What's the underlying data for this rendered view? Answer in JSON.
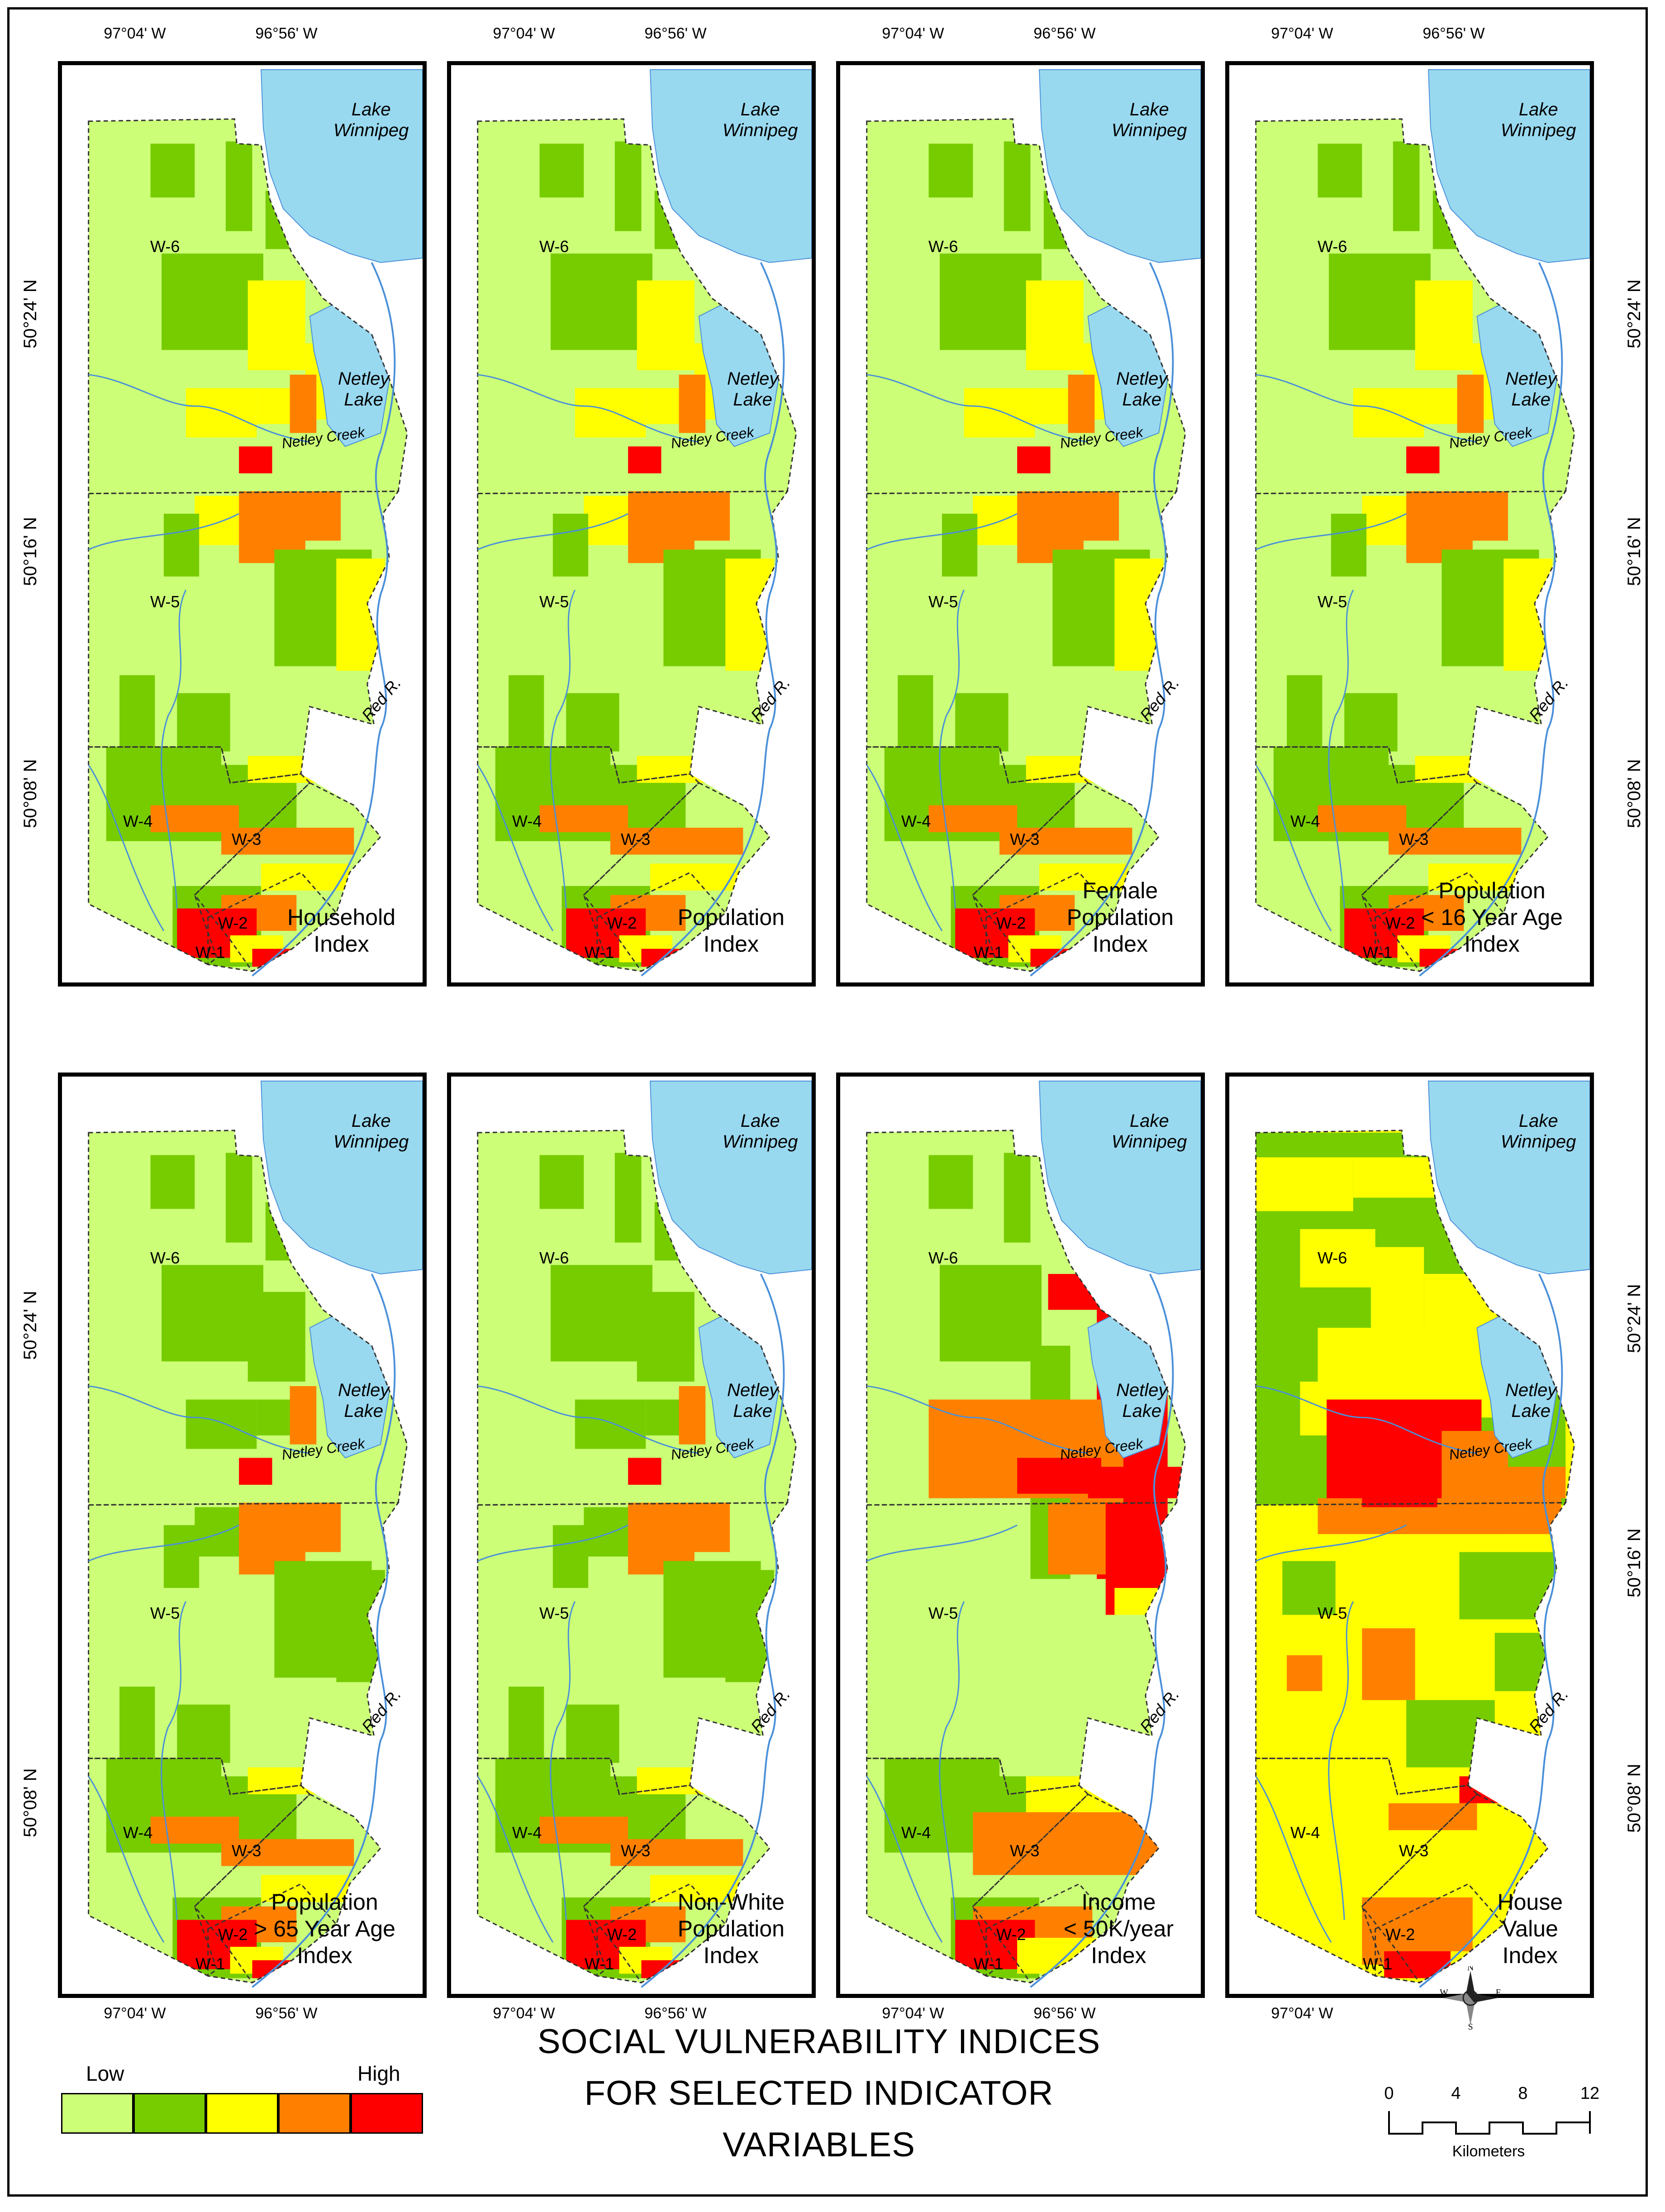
{
  "figure": {
    "title_line1": "SOCIAL VULNERABILITY INDICES",
    "title_line2": "FOR SELECTED INDICATOR VARIABLES"
  },
  "axes": {
    "lon_left": "97°04' W",
    "lon_right": "96°56' W",
    "lat_top": "50°24' N",
    "lat_mid": "50°16' N",
    "lat_bottom": "50°08' N"
  },
  "map_labels": {
    "lake_winnipeg": "Lake\nWinnipeg",
    "netley_lake": "Netley\nLake",
    "netley_creek": "Netley Creek",
    "red_river": "Red R.",
    "wards": [
      "W-6",
      "W-5",
      "W-4",
      "W-3",
      "W-2",
      "W-1"
    ]
  },
  "panels": [
    {
      "label": "Household\nIndex",
      "scheme": "a"
    },
    {
      "label": "Population\nIndex",
      "scheme": "a"
    },
    {
      "label": "Female\nPopulation\nIndex",
      "scheme": "a"
    },
    {
      "label": "Population\n< 16 Year Age\nIndex",
      "scheme": "a"
    },
    {
      "label": "Population\n> 65 Year Age\nIndex",
      "scheme": "b"
    },
    {
      "label": "Non-White\nPopulation\nIndex",
      "scheme": "b"
    },
    {
      "label": "Income\n< 50K/year\nIndex",
      "scheme": "c"
    },
    {
      "label": "House\nValue\nIndex",
      "scheme": "d"
    }
  ],
  "legend": {
    "low": "Low",
    "high": "High",
    "classes": [
      "#ccff77",
      "#77cc00",
      "#ffff00",
      "#ff8000",
      "#ff0000"
    ]
  },
  "colors": {
    "water": "#99d9f0",
    "river": "#4a90d9"
  },
  "north_arrow": {
    "n": "N",
    "s": "S",
    "e": "E",
    "w": "W"
  },
  "scale_bar": {
    "ticks": [
      "0",
      "4",
      "8",
      "12"
    ],
    "unit": "Kilometers"
  }
}
